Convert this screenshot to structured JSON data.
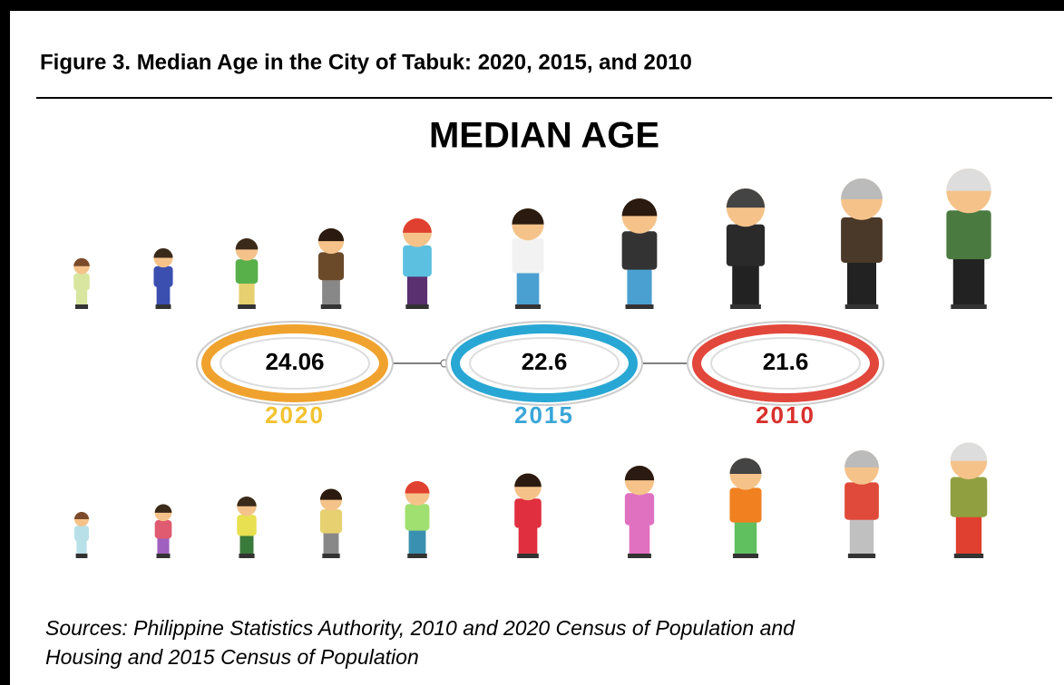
{
  "figure_title": "Figure 3. Median Age in the City of Tabuk: 2020, 2015, and 2010",
  "heading": "MEDIAN AGE",
  "items": [
    {
      "value": "24.06",
      "year": "2020",
      "color": "#f0a22e",
      "year_color": "#f2c230"
    },
    {
      "value": "22.6",
      "year": "2015",
      "color": "#29a7d4",
      "year_color": "#3aa6d8"
    },
    {
      "value": "21.6",
      "year": "2010",
      "color": "#e2473c",
      "year_color": "#d9302c"
    }
  ],
  "sources": [
    "Sources: Philippine Statistics Authority, 2010 and 2020 Census of Population and",
    "Housing and 2015 Census of Population"
  ]
}
